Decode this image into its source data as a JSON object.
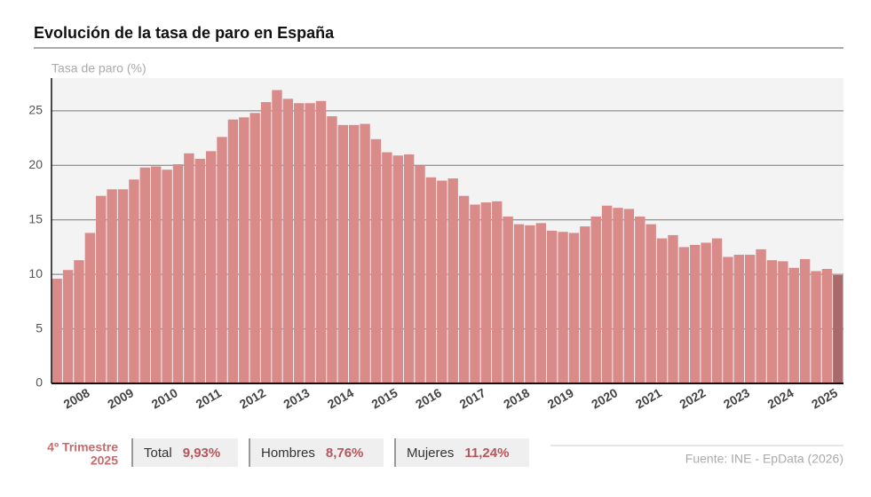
{
  "chart_data": {
    "type": "bar",
    "title": "Evolución de la tasa de paro en España",
    "y_label": "Tasa de paro (%)",
    "categories": [
      "2008",
      null,
      null,
      null,
      "2009",
      null,
      null,
      null,
      "2010",
      null,
      null,
      null,
      "2011",
      null,
      null,
      null,
      "2012",
      null,
      null,
      null,
      "2013",
      null,
      null,
      null,
      "2014",
      null,
      null,
      null,
      "2015",
      null,
      null,
      null,
      "2016",
      null,
      null,
      null,
      "2017",
      null,
      null,
      null,
      "2018",
      null,
      null,
      null,
      "2019",
      null,
      null,
      null,
      "2020",
      null,
      null,
      null,
      "2021",
      null,
      null,
      null,
      "2022",
      null,
      null,
      null,
      "2023",
      null,
      null,
      null,
      "2024",
      null,
      null,
      null,
      "2025",
      null,
      null,
      null
    ],
    "values": [
      9.6,
      10.4,
      11.3,
      13.8,
      17.2,
      17.8,
      17.8,
      18.7,
      19.8,
      19.9,
      19.6,
      20.1,
      21.1,
      20.6,
      21.3,
      22.6,
      24.2,
      24.4,
      24.8,
      25.8,
      26.9,
      26.1,
      25.7,
      25.7,
      25.9,
      24.5,
      23.7,
      23.7,
      23.8,
      22.4,
      21.2,
      20.9,
      21.0,
      20.0,
      18.9,
      18.6,
      18.8,
      17.2,
      16.4,
      16.6,
      16.7,
      15.3,
      14.6,
      14.5,
      14.7,
      14.0,
      13.9,
      13.8,
      14.4,
      15.3,
      16.3,
      16.1,
      16.0,
      15.3,
      14.6,
      13.3,
      13.6,
      12.5,
      12.7,
      12.9,
      13.3,
      11.6,
      11.8,
      11.8,
      12.3,
      11.3,
      11.2,
      10.6,
      11.4,
      10.3,
      10.5,
      9.93
    ],
    "color": "#d98b8a",
    "highlight_color": "#a86a6a",
    "ylim": [
      0,
      28
    ],
    "yticks": [
      0,
      5,
      10,
      15,
      20,
      25
    ],
    "grid": true,
    "summary": {
      "period": "4º Trimestre",
      "year": "2025",
      "items": [
        {
          "label": "Total",
          "value": "9,93%"
        },
        {
          "label": "Hombres",
          "value": "8,76%"
        },
        {
          "label": "Mujeres",
          "value": "11,24%"
        }
      ]
    },
    "source": "Fuente: INE - EpData (2026)"
  }
}
